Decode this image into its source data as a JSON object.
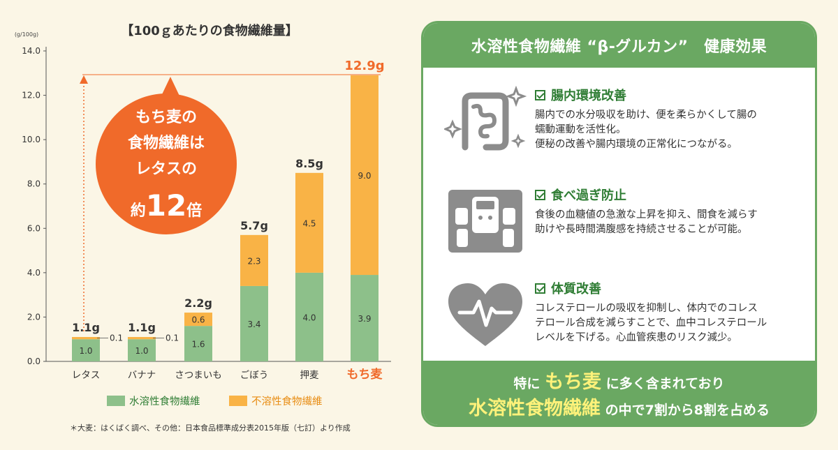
{
  "chart_data": {
    "type": "bar",
    "stacked": true,
    "title": "【100ｇあたりの食物繊維量】",
    "ylabel": "(g/100g)",
    "ylim": [
      0,
      14
    ],
    "yticks": [
      "0.0",
      "2.0",
      "4.0",
      "6.0",
      "8.0",
      "10.0",
      "12.0",
      "14.0"
    ],
    "categories": [
      "レタス",
      "バナナ",
      "さつまいも",
      "ごぼう",
      "押麦",
      "もち麦"
    ],
    "highlight_category": "もち麦",
    "series": [
      {
        "name": "水溶性食物繊維",
        "color": "#8dc08a",
        "values": [
          1.0,
          1.0,
          1.6,
          3.4,
          4.0,
          3.9
        ],
        "labels": [
          "1.0",
          "1.0",
          "1.6",
          "3.4",
          "4.0",
          "3.9"
        ]
      },
      {
        "name": "不溶性食物繊維",
        "color": "#f9b346",
        "values": [
          0.1,
          0.1,
          0.6,
          2.3,
          4.5,
          9.0
        ],
        "labels": [
          "0.1",
          "0.1",
          "0.6",
          "2.3",
          "4.5",
          "9.0"
        ]
      }
    ],
    "totals": [
      "1.1g",
      "1.1g",
      "2.2g",
      "5.7g",
      "8.5g",
      "12.9g"
    ],
    "callout": {
      "lines": [
        "もち麦の",
        "食物繊維は",
        "レタスの"
      ],
      "prefix": "約",
      "number": "12",
      "suffix": "倍"
    },
    "source": "＊大麦：はくばく調べ、その他：日本食品標準成分表2015年版（七訂）より作成"
  },
  "panel": {
    "header": "水溶性食物繊維 “β-グルカン”　健康効果",
    "benefits": [
      {
        "icon": "intestine-icon",
        "title": "腸内環境改善",
        "desc": "腸内での水分吸収を助け、便を柔らかくして腸の\n蠕動運動を活性化。\n便秘の改善や腸内環境の正常化につながる。"
      },
      {
        "icon": "scale-icon",
        "title": "食べ過ぎ防止",
        "desc": "食後の血糖値の急激な上昇を抑え、間食を減らす\n助けや長時間満腹感を持続させることが可能。"
      },
      {
        "icon": "heart-icon",
        "title": "体質改善",
        "desc": "コレステロールの吸収を抑制し、体内でのコレス\nテロール合成を減らすことで、血中コレステロール\nレベルを下げる。心血管疾患のリスク減少。"
      }
    ],
    "footer": {
      "line1_pre": "特に",
      "line1_highlight": "もち麦",
      "line1_post": "に多く含まれており",
      "line2_highlight": "水溶性食物繊維",
      "line2_post": "の中で7割から8割を占める"
    }
  },
  "colors": {
    "soluble": "#8dc08a",
    "insoluble": "#f9b346",
    "accent_orange": "#f06a2a",
    "panel_green": "#6aa862",
    "title_green": "#2f7d34",
    "highlight_yellow": "#fff27a",
    "icon_gray": "#8c8c8c"
  }
}
